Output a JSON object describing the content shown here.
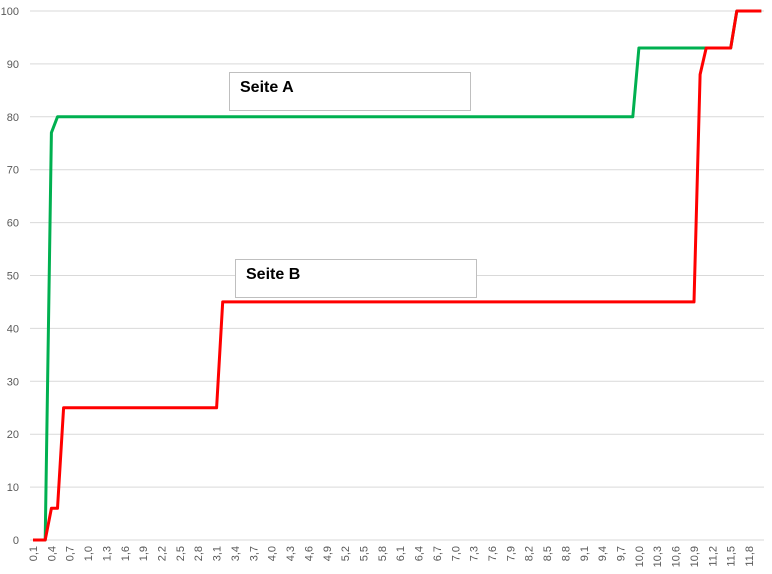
{
  "chart_data": {
    "type": "line",
    "title": "",
    "xlabel": "",
    "ylabel": "",
    "ylim": [
      0,
      100
    ],
    "yticks": [
      0,
      10,
      20,
      30,
      40,
      50,
      60,
      70,
      80,
      90,
      100
    ],
    "grid": true,
    "x_label_interval": 3,
    "x": [
      0.1,
      0.2,
      0.3,
      0.4,
      0.5,
      0.6,
      0.7,
      0.8,
      0.9,
      1.0,
      1.1,
      1.2,
      1.3,
      1.4,
      1.5,
      1.6,
      1.7,
      1.8,
      1.9,
      2.0,
      2.1,
      2.2,
      2.3,
      2.4,
      2.5,
      2.6,
      2.7,
      2.8,
      2.9,
      3.0,
      3.1,
      3.2,
      3.3,
      3.4,
      3.5,
      3.6,
      3.7,
      3.8,
      3.9,
      4.0,
      4.1,
      4.2,
      4.3,
      4.4,
      4.5,
      4.6,
      4.7,
      4.8,
      4.9,
      5.0,
      5.1,
      5.2,
      5.3,
      5.4,
      5.5,
      5.6,
      5.7,
      5.8,
      5.9,
      6.0,
      6.1,
      6.2,
      6.3,
      6.4,
      6.5,
      6.6,
      6.7,
      6.8,
      6.9,
      7.0,
      7.1,
      7.2,
      7.3,
      7.4,
      7.5,
      7.6,
      7.7,
      7.8,
      7.9,
      8.0,
      8.1,
      8.2,
      8.3,
      8.4,
      8.5,
      8.6,
      8.7,
      8.8,
      8.9,
      9.0,
      9.1,
      9.2,
      9.3,
      9.4,
      9.5,
      9.6,
      9.7,
      9.8,
      9.9,
      10.0,
      10.1,
      10.2,
      10.3,
      10.4,
      10.5,
      10.6,
      10.7,
      10.8,
      10.9,
      11.0,
      11.1,
      11.2,
      11.3,
      11.4,
      11.5,
      11.6,
      11.7,
      11.8,
      11.9,
      12.0
    ],
    "series": [
      {
        "color": "#00b050",
        "values": [
          0,
          0,
          0,
          77,
          80,
          80,
          80,
          80,
          80,
          80,
          80,
          80,
          80,
          80,
          80,
          80,
          80,
          80,
          80,
          80,
          80,
          80,
          80,
          80,
          80,
          80,
          80,
          80,
          80,
          80,
          80,
          80,
          80,
          80,
          80,
          80,
          80,
          80,
          80,
          80,
          80,
          80,
          80,
          80,
          80,
          80,
          80,
          80,
          80,
          80,
          80,
          80,
          80,
          80,
          80,
          80,
          80,
          80,
          80,
          80,
          80,
          80,
          80,
          80,
          80,
          80,
          80,
          80,
          80,
          80,
          80,
          80,
          80,
          80,
          80,
          80,
          80,
          80,
          80,
          80,
          80,
          80,
          80,
          80,
          80,
          80,
          80,
          80,
          80,
          80,
          80,
          80,
          80,
          80,
          80,
          80,
          80,
          80,
          80,
          93,
          93,
          93,
          93,
          93,
          93,
          93,
          93,
          93,
          93,
          93,
          93,
          93,
          93,
          93,
          93,
          100,
          100,
          100,
          100,
          100
        ]
      },
      {
        "color": "#ff0000",
        "values": [
          0,
          0,
          0,
          6,
          6,
          25,
          25,
          25,
          25,
          25,
          25,
          25,
          25,
          25,
          25,
          25,
          25,
          25,
          25,
          25,
          25,
          25,
          25,
          25,
          25,
          25,
          25,
          25,
          25,
          25,
          25,
          45,
          45,
          45,
          45,
          45,
          45,
          45,
          45,
          45,
          45,
          45,
          45,
          45,
          45,
          45,
          45,
          45,
          45,
          45,
          45,
          45,
          45,
          45,
          45,
          45,
          45,
          45,
          45,
          45,
          45,
          45,
          45,
          45,
          45,
          45,
          45,
          45,
          45,
          45,
          45,
          45,
          45,
          45,
          45,
          45,
          45,
          45,
          45,
          45,
          45,
          45,
          45,
          45,
          45,
          45,
          45,
          45,
          45,
          45,
          45,
          45,
          45,
          45,
          45,
          45,
          45,
          45,
          45,
          45,
          45,
          45,
          45,
          45,
          45,
          45,
          45,
          45,
          45,
          88,
          93,
          93,
          93,
          93,
          93,
          100,
          100,
          100,
          100,
          100
        ]
      }
    ],
    "annotations": [
      {
        "text": "Seite A",
        "series_color": "#00b050"
      },
      {
        "text": "Seite B",
        "series_color": "#ff0000"
      }
    ]
  }
}
